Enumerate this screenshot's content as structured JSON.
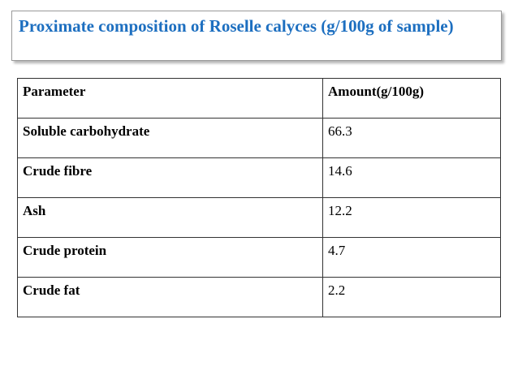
{
  "header": {
    "title": "Proximate composition of Roselle calyces (g/100g of sample)"
  },
  "table": {
    "header": [
      "Parameter",
      "Amount(g/100g)"
    ],
    "rows": [
      [
        "Soluble carbohydrate",
        "66.3"
      ],
      [
        "Crude fibre",
        "14.6"
      ],
      [
        "Ash",
        "12.2"
      ],
      [
        "Crude protein",
        "4.7"
      ],
      [
        "Crude fat",
        "2.2"
      ]
    ]
  }
}
